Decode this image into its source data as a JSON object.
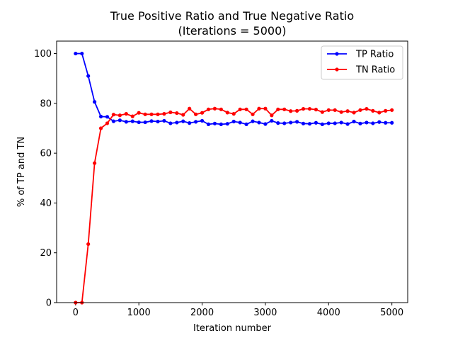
{
  "chart_data": {
    "type": "line",
    "title": "True Positive Ratio and True Negative Ratio",
    "subtitle": "(Iterations = 5000)",
    "xlabel": "Iteration number",
    "ylabel": "% of TP and TN",
    "xlim": [
      -300,
      5250
    ],
    "ylim": [
      0,
      105
    ],
    "xticks": [
      0,
      1000,
      2000,
      3000,
      4000,
      5000
    ],
    "yticks": [
      0,
      20,
      40,
      60,
      80,
      100
    ],
    "grid": false,
    "legend_position": "top-right",
    "x": [
      0,
      100,
      200,
      300,
      400,
      500,
      600,
      700,
      800,
      900,
      1000,
      1100,
      1200,
      1300,
      1400,
      1500,
      1600,
      1700,
      1800,
      1900,
      2000,
      2100,
      2200,
      2300,
      2400,
      2500,
      2600,
      2700,
      2800,
      2900,
      3000,
      3100,
      3200,
      3300,
      3400,
      3500,
      3600,
      3700,
      3800,
      3900,
      4000,
      4100,
      4200,
      4300,
      4400,
      4500,
      4600,
      4700,
      4800,
      4900,
      5000
    ],
    "series": [
      {
        "name": "TP Ratio",
        "color": "#0000ff",
        "values": [
          100,
          100,
          91,
          80.6,
          74.7,
          74.6,
          72.8,
          73.2,
          72.6,
          72.8,
          72.4,
          72.4,
          72.9,
          72.7,
          73.0,
          72.0,
          72.3,
          72.8,
          72.1,
          72.6,
          73.0,
          71.6,
          71.9,
          71.6,
          71.8,
          72.7,
          72.3,
          71.6,
          72.8,
          72.3,
          71.7,
          73.0,
          72.1,
          72.0,
          72.3,
          72.6,
          71.9,
          71.8,
          72.2,
          71.6,
          72.0,
          72.0,
          72.3,
          71.7,
          72.7,
          71.9,
          72.3,
          72.0,
          72.5,
          72.2,
          72.2
        ]
      },
      {
        "name": "TN Ratio",
        "color": "#ff0000",
        "values": [
          0,
          0,
          23.5,
          56,
          70,
          72,
          75.5,
          75.2,
          75.8,
          74.8,
          76.2,
          75.6,
          75.6,
          75.6,
          75.8,
          76.4,
          76.1,
          75.4,
          77.9,
          75.6,
          76.2,
          77.6,
          77.9,
          77.6,
          76.3,
          75.8,
          77.6,
          77.6,
          75.6,
          77.9,
          77.9,
          75.2,
          77.6,
          77.6,
          76.9,
          77.0,
          77.8,
          77.8,
          77.5,
          76.5,
          77.3,
          77.3,
          76.5,
          76.9,
          76.3,
          77.3,
          77.8,
          77.0,
          76.3,
          77.0,
          77.3
        ]
      }
    ]
  }
}
